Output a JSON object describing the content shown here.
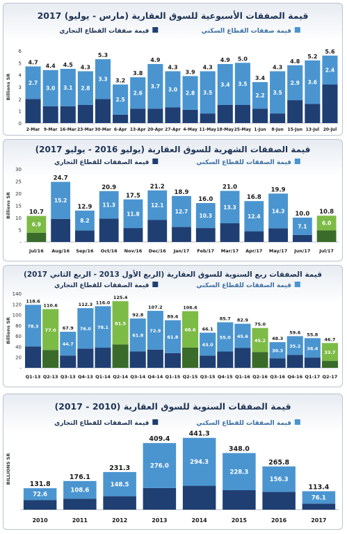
{
  "colors": {
    "residential": "#4a95d0",
    "commercial": "#1f3f73",
    "highlight_residential": "#7dbb47",
    "highlight_commercial": "#3a6b2a",
    "title": "#1e3355"
  },
  "chart_data": [
    {
      "type": "bar",
      "stacked": true,
      "title": "قيمة الصفقات الأسبوعية للسوق العقارية (مارس - يوليو) 2017",
      "ylabel": "Billions SR",
      "ylim": [
        0,
        6
      ],
      "yticks": [
        0,
        1,
        2,
        3,
        4,
        5,
        6
      ],
      "legend": [
        "قيمة صفقات القطاع السكني",
        "قيمة صفقات القطاع التجاري"
      ],
      "categories": [
        "2-Mar",
        "9-Mar",
        "16-Mar",
        "23-Mar",
        "30-Mar",
        "6-Apr",
        "13-Apr",
        "20-Apr",
        "27-Apr",
        "4-May",
        "11-May",
        "18-May",
        "25-May",
        "1-Jun",
        "8-Jun",
        "15-Jun",
        "13-Jul",
        "20-Jul"
      ],
      "series": [
        {
          "name": "قيمة صفقات القطاع السكني",
          "values": [
            2.7,
            3.0,
            3.1,
            2.8,
            3.3,
            2.5,
            2.6,
            3.7,
            3.0,
            2.8,
            3.5,
            3.4,
            3.5,
            2.2,
            3.5,
            2.9,
            3.6,
            2.4
          ]
        },
        {
          "name": "قيمة صفقات القطاع التجاري",
          "values": [
            2.0,
            1.4,
            1.4,
            1.5,
            2.0,
            0.7,
            1.2,
            1.2,
            1.3,
            1.1,
            0.8,
            1.5,
            1.5,
            1.2,
            0.8,
            1.9,
            1.6,
            3.2
          ]
        }
      ],
      "totals": [
        4.7,
        4.4,
        4.5,
        4.3,
        5.3,
        3.2,
        3.8,
        4.9,
        4.3,
        3.9,
        4.3,
        4.9,
        5.0,
        3.4,
        4.3,
        4.8,
        5.2,
        5.6
      ],
      "highlight": []
    },
    {
      "type": "bar",
      "stacked": true,
      "title": "قيمة الصفقات الشهرية للسوق العقارية (يوليو 2016 - يوليو 2017)",
      "ylabel": "Billions SR",
      "ylim": [
        0,
        30
      ],
      "yticks": [
        "-",
        5,
        10,
        15,
        20,
        25,
        30
      ],
      "legend": [
        "قيمة الصفقات للقطاع السكني",
        "قيمة الصفقات للقطاع التجاري"
      ],
      "categories": [
        "Jul/16",
        "Aug/16",
        "Sep/16",
        "Oct/16",
        "Nov/16",
        "Dec/16",
        "Jan/17",
        "Feb/17",
        "Mar/17",
        "Apr/17",
        "May/17",
        "Jun/17",
        "Jul/17"
      ],
      "series": [
        {
          "name": "قيمة الصفقات للقطاع السكني",
          "values": [
            6.9,
            15.2,
            8.2,
            11.3,
            11.8,
            12.1,
            12.7,
            10.3,
            13.3,
            12.4,
            14.3,
            7.1,
            6.0
          ]
        },
        {
          "name": "قيمة الصفقات للقطاع التجاري",
          "values": [
            3.8,
            9.5,
            4.7,
            9.6,
            5.7,
            9.1,
            6.2,
            5.7,
            7.7,
            4.4,
            5.6,
            2.9,
            4.8
          ]
        }
      ],
      "totals": [
        10.7,
        24.7,
        12.9,
        20.9,
        17.5,
        21.2,
        18.9,
        16.0,
        21.0,
        16.8,
        19.9,
        10.0,
        10.8
      ],
      "highlight": [
        0,
        12
      ]
    },
    {
      "type": "bar",
      "stacked": true,
      "title": "قيمة الصفقات ربع السنوية للسوق العقارية (الربع الأول 2013 - الربع الثاني 2017)",
      "ylabel": "Billions SR",
      "ylim": [
        0,
        140
      ],
      "yticks": [
        "-",
        20,
        40,
        60,
        80,
        100,
        120,
        140
      ],
      "legend": [
        "قيمة الصفقات للقطاع السكني",
        "قيمة الصفقات للقطاع التجاري"
      ],
      "categories": [
        "Q1-13",
        "Q2-13",
        "Q3-13",
        "Q4-13",
        "Q1-14",
        "Q2-14",
        "Q3-14",
        "Q4-14",
        "Q1-15",
        "Q2-15",
        "Q3-15",
        "Q4-15",
        "Q1-16",
        "Q2-16",
        "Q3-16",
        "Q4-16",
        "Q1-17",
        "Q2-17"
      ],
      "series": [
        {
          "name": "قيمة الصفقات للقطاع السكني",
          "values": [
            78.3,
            77.0,
            44.7,
            76.0,
            78.1,
            81.5,
            61.8,
            72.9,
            61.8,
            68.6,
            43.0,
            55.0,
            45.6,
            45.2,
            30.3,
            35.2,
            36.4,
            33.7
          ]
        },
        {
          "name": "قيمة الصفقات للقطاع التجاري",
          "values": [
            40.3,
            33.6,
            23.2,
            36.3,
            37.9,
            43.9,
            31.0,
            34.3,
            27.8,
            38.0,
            23.1,
            30.7,
            37.3,
            29.8,
            18.0,
            24.4,
            19.4,
            13.0
          ]
        }
      ],
      "totals": [
        118.6,
        110.6,
        67.9,
        112.3,
        116.0,
        125.4,
        92.8,
        107.2,
        89.6,
        106.6,
        66.1,
        85.7,
        82.9,
        75.0,
        48.3,
        59.6,
        55.8,
        46.7
      ],
      "highlight": [
        1,
        5,
        9,
        13,
        17
      ]
    },
    {
      "type": "bar",
      "stacked": true,
      "title": "قيمة الصفقات السنوية للسوق العقارية (2010 - 2017)",
      "ylabel": "BILLIONS SR",
      "ylim": [
        0,
        500
      ],
      "yticks": [],
      "legend": [
        "قيمة الصفقات للقطاع السكني",
        "قيمة الصفقات للقطاع التجاري"
      ],
      "categories": [
        "2010",
        "2011",
        "2012",
        "2013",
        "2014",
        "2015",
        "2016",
        "2017"
      ],
      "series": [
        {
          "name": "قيمة الصفقات للقطاع السكني",
          "values": [
            72.6,
            108.6,
            148.5,
            276.0,
            294.3,
            228.3,
            156.3,
            76.1
          ]
        },
        {
          "name": "قيمة الصفقات للقطاع التجاري",
          "values": [
            59.2,
            67.5,
            82.8,
            133.4,
            147.0,
            119.7,
            109.5,
            37.3
          ]
        }
      ],
      "totals": [
        131.8,
        176.1,
        231.3,
        409.4,
        441.3,
        348.0,
        265.8,
        113.4
      ],
      "highlight": []
    }
  ]
}
